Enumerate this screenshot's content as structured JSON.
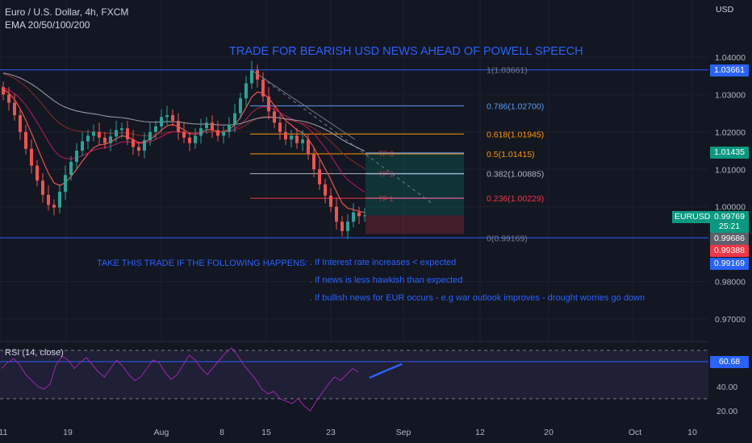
{
  "header": {
    "instrument": "Euro / U.S. Dollar, 4h, FXCM",
    "indicator": "EMA 20/50/100/200"
  },
  "title": "TRADE FOR BEARISH USD NEWS AHEAD OF POWELL SPEECH",
  "currency": "USD",
  "rsi_label": "RSI (14, close)",
  "notes": {
    "heading": "TAKE THIS TRADE IF THE FOLLOWING HAPPENS:",
    "items": [
      ". If Interest rate increases < expected",
      ". If news is less hawkish than expected",
      ". If bullish news for EUR occurs - e.g war outlook improves - drought worries go down"
    ]
  },
  "price_tags": {
    "symbol": "EURUSD",
    "last": "0.99769",
    "countdown": "25:21",
    "bid": "0.99686",
    "ask": "0.99388",
    "fib0": "0.99169",
    "fib1": "1.03661",
    "tp3": "1.01435",
    "rsi": "60.68"
  },
  "colors": {
    "background": "#131722",
    "bull": "#26a69a",
    "bear": "#ef5350",
    "fib_line": "#2962ff",
    "fib_orange": "#ff9800",
    "fib_red": "#f23645",
    "rsi": "#9c27b0",
    "title": "#2962ff"
  },
  "chart_data": {
    "type": "candlestick",
    "symbol": "EURUSD",
    "timeframe": "4h",
    "y_axis": {
      "ticks": [
        "1.04000",
        "1.03000",
        "1.02000",
        "1.01000",
        "1.00000",
        "0.98000",
        "0.97000"
      ],
      "ylim": [
        0.965,
        1.052
      ]
    },
    "x_axis": {
      "ticks": [
        "11",
        "19",
        "Aug",
        "8",
        "15",
        "23",
        "Sep",
        "12",
        "20",
        "Oct",
        "10"
      ]
    },
    "fib_levels": [
      {
        "label": "1(1.03661)",
        "value": 1.03661,
        "color": "#787b86"
      },
      {
        "label": "0.786(1.02700)",
        "value": 1.027,
        "color": "#5b9cf6"
      },
      {
        "label": "0.618(1.01945)",
        "value": 1.01945,
        "color": "#ff9800"
      },
      {
        "label": "0.5(1.01415)",
        "value": 1.01415,
        "color": "#ff9800"
      },
      {
        "label": "0.382(1.00885)",
        "value": 1.00885,
        "color": "#b2b5be"
      },
      {
        "label": "0.236(1.00229)",
        "value": 1.00229,
        "color": "#f23645"
      },
      {
        "label": "0(0.99169)",
        "value": 0.99169,
        "color": "#787b86"
      }
    ],
    "position_targets": [
      {
        "label": "TP 3",
        "value": 1.01435
      },
      {
        "label": "TP 2",
        "value": 1.00885
      },
      {
        "label": "TP 1",
        "value": 1.00229
      }
    ],
    "entry": 0.9977,
    "stop": 0.9953,
    "close_points": [
      1.03,
      1.0278,
      1.0245,
      1.02,
      1.0155,
      1.011,
      1.007,
      1.0032,
      1.0005,
      0.9998,
      1.004,
      1.0085,
      1.012,
      1.015,
      1.0175,
      1.019,
      1.02,
      1.0185,
      1.017,
      1.0188,
      1.0205,
      1.021,
      1.018,
      1.016,
      1.015,
      1.0178,
      1.02,
      1.0215,
      1.024,
      1.0245,
      1.023,
      1.02,
      1.0185,
      1.017,
      1.019,
      1.021,
      1.0225,
      1.0205,
      1.019,
      1.02,
      1.022,
      1.025,
      1.029,
      1.033,
      1.0365,
      1.034,
      1.0295,
      1.0255,
      1.0225,
      1.02,
      1.018,
      1.019,
      1.017,
      1.018,
      1.014,
      1.01,
      1.006,
      1.003,
      1.0,
      0.996,
      0.9935,
      0.996,
      0.9985,
      0.9975,
      0.9977
    ],
    "rsi": {
      "label": "RSI (14, close)",
      "last": 60.68,
      "levels": [
        70,
        30
      ],
      "ticks": [
        "40.00",
        "20.00"
      ],
      "values": [
        55,
        60,
        63,
        58,
        50,
        45,
        40,
        38,
        42,
        58,
        65,
        62,
        55,
        60,
        64,
        58,
        52,
        48,
        55,
        62,
        57,
        50,
        45,
        48,
        55,
        62,
        60,
        52,
        46,
        50,
        58,
        66,
        62,
        55,
        50,
        56,
        62,
        68,
        72,
        66,
        58,
        52,
        46,
        38,
        34,
        36,
        30,
        28,
        26,
        30,
        24,
        20,
        28,
        35,
        42,
        48,
        45,
        50,
        55,
        52
      ]
    }
  }
}
